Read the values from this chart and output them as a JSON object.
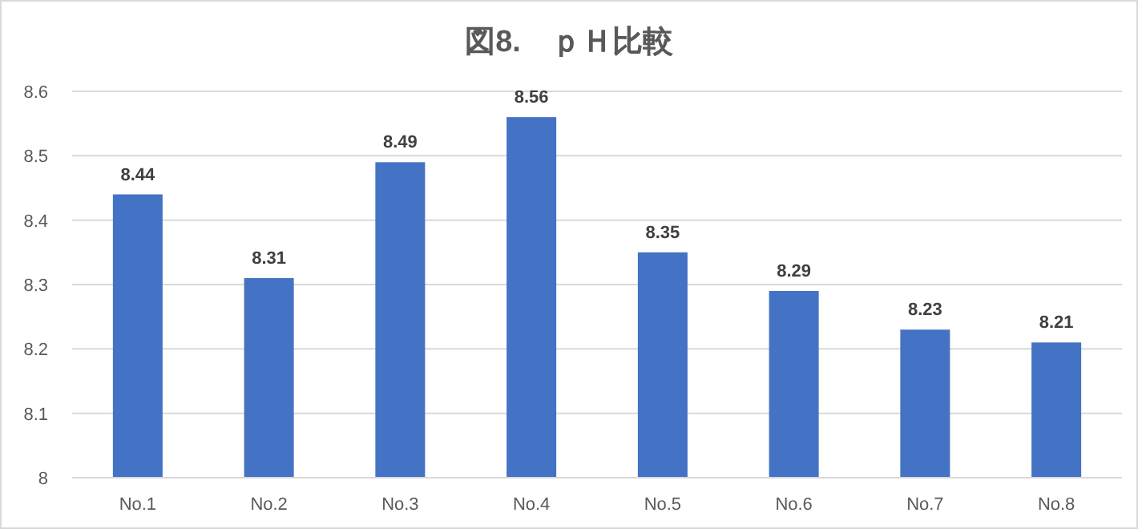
{
  "chart_data": {
    "type": "bar",
    "title": "図8.　ｐＨ比較",
    "categories": [
      "No.1",
      "No.2",
      "No.3",
      "No.4",
      "No.5",
      "No.6",
      "No.7",
      "No.8"
    ],
    "values": [
      8.44,
      8.31,
      8.49,
      8.56,
      8.35,
      8.29,
      8.23,
      8.21
    ],
    "color": "#4472c4",
    "ylim": [
      8,
      8.6
    ],
    "yticks": [
      8,
      8.1,
      8.2,
      8.3,
      8.4,
      8.5,
      8.6
    ],
    "grid": "y",
    "data_labels": true
  }
}
